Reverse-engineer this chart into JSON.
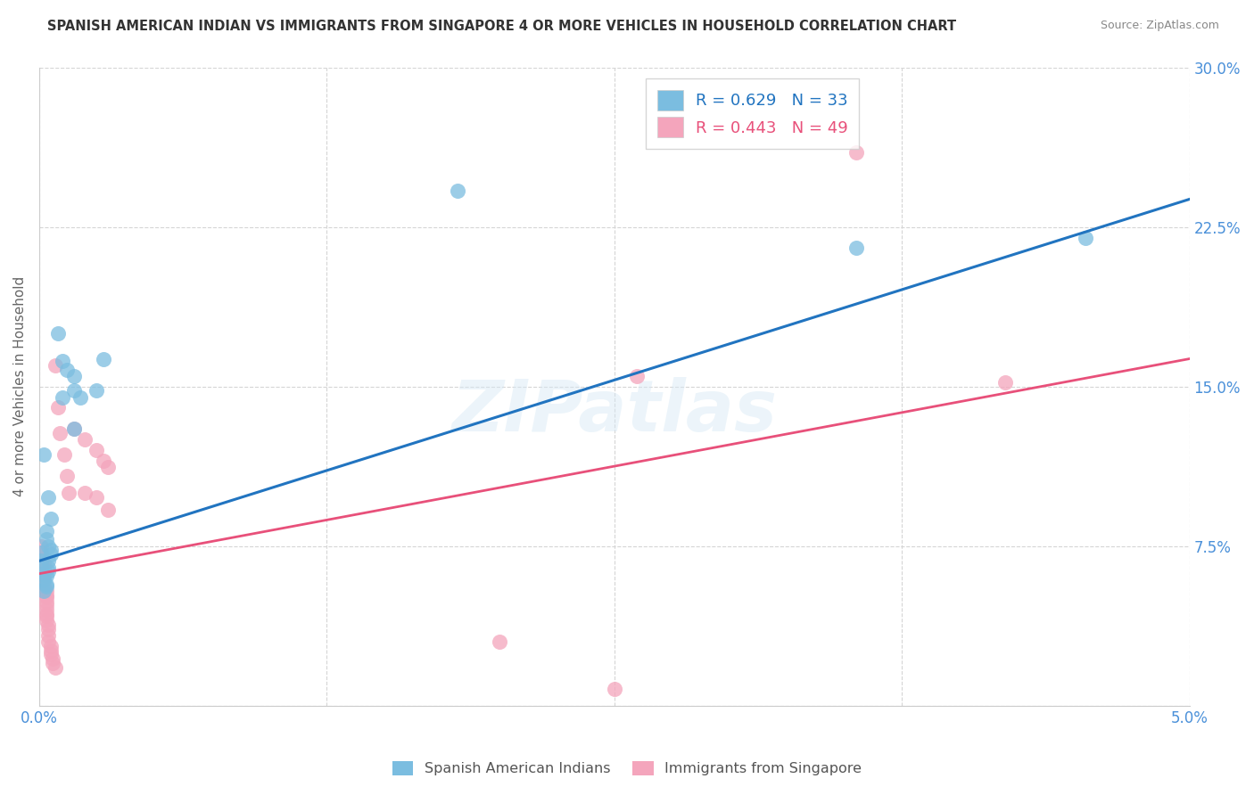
{
  "title": "SPANISH AMERICAN INDIAN VS IMMIGRANTS FROM SINGAPORE 4 OR MORE VEHICLES IN HOUSEHOLD CORRELATION CHART",
  "source": "Source: ZipAtlas.com",
  "ylabel": "4 or more Vehicles in Household",
  "xlim": [
    0.0,
    0.05
  ],
  "ylim": [
    0.0,
    0.3
  ],
  "xtick_positions": [
    0.0,
    0.0125,
    0.025,
    0.0375,
    0.05
  ],
  "xticklabels": [
    "0.0%",
    "",
    "",
    "",
    "5.0%"
  ],
  "ytick_positions": [
    0.0,
    0.075,
    0.15,
    0.225,
    0.3
  ],
  "yticklabels": [
    "",
    "7.5%",
    "15.0%",
    "22.5%",
    "30.0%"
  ],
  "blue_R": 0.629,
  "blue_N": 33,
  "pink_R": 0.443,
  "pink_N": 49,
  "blue_scatter_color": "#7bbde0",
  "pink_scatter_color": "#f4a5bc",
  "blue_line_color": "#2174c0",
  "pink_line_color": "#e8507a",
  "tick_label_color": "#4a90d9",
  "watermark": "ZIPatlas",
  "legend_label_blue": "Spanish American Indians",
  "legend_label_pink": "Immigrants from Singapore",
  "blue_line_y0": 0.068,
  "blue_line_y1": 0.238,
  "pink_line_y0": 0.062,
  "pink_line_y1": 0.163,
  "blue_scatter": [
    [
      0.0002,
      0.118
    ],
    [
      0.0004,
      0.098
    ],
    [
      0.0005,
      0.088
    ],
    [
      0.0003,
      0.082
    ],
    [
      0.0003,
      0.078
    ],
    [
      0.0004,
      0.075
    ],
    [
      0.0005,
      0.073
    ],
    [
      0.0005,
      0.071
    ],
    [
      0.0004,
      0.068
    ],
    [
      0.0004,
      0.065
    ],
    [
      0.0004,
      0.063
    ],
    [
      0.0003,
      0.061
    ],
    [
      0.0002,
      0.059
    ],
    [
      0.0003,
      0.057
    ],
    [
      0.0003,
      0.056
    ],
    [
      0.0002,
      0.054
    ],
    [
      0.0001,
      0.072
    ],
    [
      0.0001,
      0.068
    ],
    [
      0.0001,
      0.065
    ],
    [
      0.0001,
      0.062
    ],
    [
      0.0008,
      0.175
    ],
    [
      0.001,
      0.162
    ],
    [
      0.0012,
      0.158
    ],
    [
      0.0015,
      0.155
    ],
    [
      0.0015,
      0.148
    ],
    [
      0.0018,
      0.145
    ],
    [
      0.001,
      0.145
    ],
    [
      0.0025,
      0.148
    ],
    [
      0.0028,
      0.163
    ],
    [
      0.0015,
      0.13
    ],
    [
      0.0182,
      0.242
    ],
    [
      0.0355,
      0.215
    ],
    [
      0.0455,
      0.22
    ]
  ],
  "pink_scatter": [
    [
      0.0001,
      0.075
    ],
    [
      0.0001,
      0.072
    ],
    [
      0.0001,
      0.069
    ],
    [
      0.0001,
      0.068
    ],
    [
      0.0002,
      0.067
    ],
    [
      0.0002,
      0.065
    ],
    [
      0.0002,
      0.063
    ],
    [
      0.0002,
      0.062
    ],
    [
      0.0002,
      0.06
    ],
    [
      0.0002,
      0.058
    ],
    [
      0.0002,
      0.056
    ],
    [
      0.0003,
      0.054
    ],
    [
      0.0003,
      0.052
    ],
    [
      0.0003,
      0.051
    ],
    [
      0.0003,
      0.049
    ],
    [
      0.0003,
      0.047
    ],
    [
      0.0003,
      0.045
    ],
    [
      0.0003,
      0.043
    ],
    [
      0.0003,
      0.042
    ],
    [
      0.0003,
      0.04
    ],
    [
      0.0004,
      0.038
    ],
    [
      0.0004,
      0.036
    ],
    [
      0.0004,
      0.033
    ],
    [
      0.0004,
      0.03
    ],
    [
      0.0005,
      0.028
    ],
    [
      0.0005,
      0.026
    ],
    [
      0.0005,
      0.024
    ],
    [
      0.0006,
      0.022
    ],
    [
      0.0006,
      0.02
    ],
    [
      0.0007,
      0.018
    ],
    [
      0.0008,
      0.14
    ],
    [
      0.0009,
      0.128
    ],
    [
      0.0011,
      0.118
    ],
    [
      0.0012,
      0.108
    ],
    [
      0.0013,
      0.1
    ],
    [
      0.0007,
      0.16
    ],
    [
      0.0015,
      0.13
    ],
    [
      0.002,
      0.125
    ],
    [
      0.0025,
      0.12
    ],
    [
      0.0028,
      0.115
    ],
    [
      0.003,
      0.112
    ],
    [
      0.002,
      0.1
    ],
    [
      0.0025,
      0.098
    ],
    [
      0.003,
      0.092
    ],
    [
      0.02,
      0.03
    ],
    [
      0.025,
      0.008
    ],
    [
      0.026,
      0.155
    ],
    [
      0.0355,
      0.26
    ],
    [
      0.042,
      0.152
    ]
  ]
}
